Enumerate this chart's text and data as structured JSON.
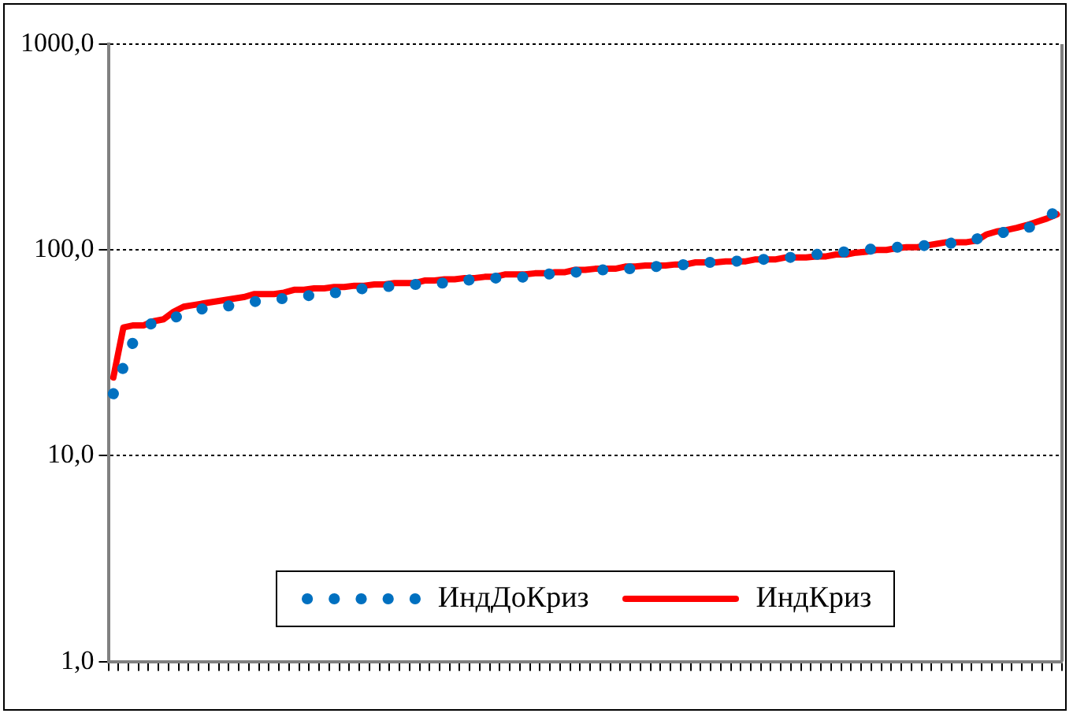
{
  "chart_data": {
    "type": "line",
    "categories": [
      null,
      null,
      null,
      null,
      null,
      null,
      null,
      null,
      null,
      null,
      null,
      null,
      null,
      null,
      null,
      null,
      null,
      null,
      null,
      null,
      null,
      null,
      null,
      null,
      null,
      null,
      null,
      null,
      null,
      null,
      null,
      null,
      null,
      null,
      null,
      null,
      null,
      null,
      null,
      null,
      null,
      null,
      null,
      null,
      null,
      null,
      null,
      null,
      null,
      null,
      null,
      null,
      null,
      null,
      null,
      null,
      null,
      null,
      null,
      null,
      null,
      null,
      null,
      null,
      null,
      null,
      null,
      null,
      null,
      null,
      null,
      null,
      null,
      null,
      null,
      null,
      null,
      null,
      null,
      null,
      null,
      null,
      null,
      null,
      null,
      null,
      null,
      null,
      null,
      null,
      null,
      null,
      null,
      null,
      null
    ],
    "series": [
      {
        "name": "ИндДоКриз",
        "color": "#0070c0",
        "line_style": "dotted",
        "values": [
          20,
          27,
          36,
          40,
          45,
          46,
          47,
          48,
          50,
          52,
          52,
          53,
          54,
          55,
          56,
          57,
          58,
          58,
          59,
          60,
          60,
          61,
          62,
          62,
          64,
          65,
          65,
          66,
          67,
          67,
          68,
          68,
          69,
          69,
          71,
          71,
          72,
          72,
          73,
          73,
          73,
          74,
          74,
          76,
          77,
          77,
          78,
          78,
          80,
          80,
          81,
          81,
          81,
          83,
          83,
          84,
          84,
          85,
          85,
          87,
          87,
          88,
          88,
          90,
          90,
          90,
          92,
          92,
          92,
          93,
          95,
          97,
          97,
          98,
          100,
          100,
          102,
          103,
          103,
          103,
          105,
          105,
          105,
          107,
          109,
          109,
          113,
          117,
          119,
          123,
          128,
          128,
          132,
          142,
          157
        ]
      },
      {
        "name": "ИндКриз",
        "color": "#ff0000",
        "line_style": "solid",
        "values": [
          24,
          42,
          43,
          43,
          45,
          46,
          50,
          53,
          54,
          55,
          56,
          57,
          58,
          59,
          61,
          61,
          61,
          62,
          64,
          64,
          65,
          65,
          66,
          66,
          67,
          67,
          68,
          68,
          69,
          69,
          69,
          71,
          71,
          72,
          72,
          73,
          73,
          74,
          74,
          76,
          76,
          76,
          77,
          77,
          78,
          78,
          80,
          80,
          81,
          81,
          81,
          83,
          83,
          84,
          84,
          84,
          85,
          85,
          87,
          87,
          87,
          88,
          88,
          88,
          90,
          90,
          90,
          92,
          92,
          92,
          93,
          93,
          95,
          95,
          97,
          98,
          100,
          100,
          102,
          103,
          103,
          105,
          107,
          109,
          109,
          109,
          111,
          119,
          123,
          125,
          128,
          132,
          137,
          142,
          149
        ]
      }
    ],
    "log": "y",
    "ylim": [
      1,
      1000
    ],
    "yticks": [
      {
        "value": 1,
        "label": "1,0"
      },
      {
        "value": 10,
        "label": "10,0"
      },
      {
        "value": 100,
        "label": "100,0"
      },
      {
        "value": 1000,
        "label": "1000,0"
      }
    ],
    "grid": "y",
    "legend": "bottom",
    "tick_labels": "y",
    "marker": "none"
  }
}
